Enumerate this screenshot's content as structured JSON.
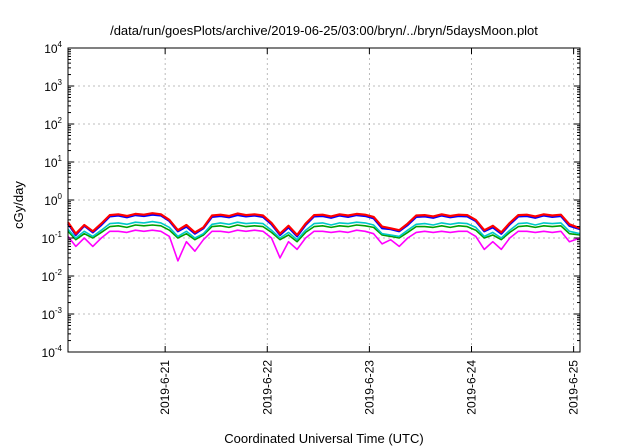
{
  "chart_data": {
    "type": "line",
    "title": "/data/run/goesPlots/archive/2019-06-25/03:00/bryn/../bryn/5daysMoon.plot",
    "xlabel": "Coordinated Universal Time (UTC)",
    "ylabel": "cGy/day",
    "yscale": "log",
    "ylim": [
      0.0001,
      10000
    ],
    "yticks": [
      {
        "base": "10",
        "exp": "-4"
      },
      {
        "base": "10",
        "exp": "-3"
      },
      {
        "base": "10",
        "exp": "-2"
      },
      {
        "base": "10",
        "exp": "-1"
      },
      {
        "base": "10",
        "exp": "0"
      },
      {
        "base": "10",
        "exp": "1"
      },
      {
        "base": "10",
        "exp": "2"
      },
      {
        "base": "10",
        "exp": "3"
      },
      {
        "base": "10",
        "exp": "4"
      }
    ],
    "x_unit": "day (UTC)",
    "xlim": [
      "2019-06-20T01:10",
      "2019-06-25T01:30"
    ],
    "xticks": [
      "2019-6-21",
      "2019-6-22",
      "2019-6-23",
      "2019-6-24",
      "2019-6-25"
    ],
    "grid": true,
    "legend": "none",
    "series": [
      {
        "color": "#ff0000",
        "x": [
          "2019-06-20T01:10",
          "2019-06-20T03:00",
          "2019-06-20T05:00",
          "2019-06-20T07:00",
          "2019-06-20T09:00",
          "2019-06-20T11:00",
          "2019-06-20T13:00",
          "2019-06-20T15:00",
          "2019-06-20T17:00",
          "2019-06-20T19:00",
          "2019-06-20T21:00",
          "2019-06-20T23:00",
          "2019-06-21T01:00",
          "2019-06-21T03:00",
          "2019-06-21T05:00",
          "2019-06-21T07:00",
          "2019-06-21T09:00",
          "2019-06-21T11:00",
          "2019-06-21T13:00",
          "2019-06-21T15:00",
          "2019-06-21T17:00",
          "2019-06-21T19:00",
          "2019-06-21T21:00",
          "2019-06-21T23:00",
          "2019-06-22T01:00",
          "2019-06-22T03:00",
          "2019-06-22T05:00",
          "2019-06-22T07:00",
          "2019-06-22T09:00",
          "2019-06-22T11:00",
          "2019-06-22T13:00",
          "2019-06-22T15:00",
          "2019-06-22T17:00",
          "2019-06-22T19:00",
          "2019-06-22T21:00",
          "2019-06-22T23:00",
          "2019-06-23T01:00",
          "2019-06-23T03:00",
          "2019-06-23T05:00",
          "2019-06-23T07:00",
          "2019-06-23T09:00",
          "2019-06-23T11:00",
          "2019-06-23T13:00",
          "2019-06-23T15:00",
          "2019-06-23T17:00",
          "2019-06-23T19:00",
          "2019-06-23T21:00",
          "2019-06-23T23:00",
          "2019-06-24T01:00",
          "2019-06-24T03:00",
          "2019-06-24T05:00",
          "2019-06-24T07:00",
          "2019-06-24T09:00",
          "2019-06-24T11:00",
          "2019-06-24T13:00",
          "2019-06-24T15:00",
          "2019-06-24T17:00",
          "2019-06-24T19:00",
          "2019-06-24T21:00",
          "2019-06-24T23:00",
          "2019-06-25T01:30"
        ],
        "y": [
          0.26,
          0.13,
          0.22,
          0.15,
          0.24,
          0.4,
          0.42,
          0.38,
          0.43,
          0.41,
          0.45,
          0.42,
          0.3,
          0.16,
          0.22,
          0.14,
          0.19,
          0.39,
          0.41,
          0.38,
          0.44,
          0.4,
          0.42,
          0.39,
          0.25,
          0.13,
          0.21,
          0.12,
          0.24,
          0.4,
          0.41,
          0.37,
          0.42,
          0.39,
          0.43,
          0.41,
          0.36,
          0.2,
          0.18,
          0.16,
          0.24,
          0.39,
          0.4,
          0.37,
          0.42,
          0.38,
          0.41,
          0.4,
          0.3,
          0.16,
          0.21,
          0.14,
          0.25,
          0.4,
          0.41,
          0.37,
          0.42,
          0.39,
          0.41,
          0.23,
          0.18
        ]
      },
      {
        "color": "#0000ff",
        "x": [
          "2019-06-20T01:10",
          "2019-06-20T03:00",
          "2019-06-20T05:00",
          "2019-06-20T07:00",
          "2019-06-20T09:00",
          "2019-06-20T11:00",
          "2019-06-20T13:00",
          "2019-06-20T15:00",
          "2019-06-20T17:00",
          "2019-06-20T19:00",
          "2019-06-20T21:00",
          "2019-06-20T23:00",
          "2019-06-21T01:00",
          "2019-06-21T03:00",
          "2019-06-21T05:00",
          "2019-06-21T07:00",
          "2019-06-21T09:00",
          "2019-06-21T11:00",
          "2019-06-21T13:00",
          "2019-06-21T15:00",
          "2019-06-21T17:00",
          "2019-06-21T19:00",
          "2019-06-21T21:00",
          "2019-06-21T23:00",
          "2019-06-22T01:00",
          "2019-06-22T03:00",
          "2019-06-22T05:00",
          "2019-06-22T07:00",
          "2019-06-22T09:00",
          "2019-06-22T11:00",
          "2019-06-22T13:00",
          "2019-06-22T15:00",
          "2019-06-22T17:00",
          "2019-06-22T19:00",
          "2019-06-22T21:00",
          "2019-06-22T23:00",
          "2019-06-23T01:00",
          "2019-06-23T03:00",
          "2019-06-23T05:00",
          "2019-06-23T07:00",
          "2019-06-23T09:00",
          "2019-06-23T11:00",
          "2019-06-23T13:00",
          "2019-06-23T15:00",
          "2019-06-23T17:00",
          "2019-06-23T19:00",
          "2019-06-23T21:00",
          "2019-06-23T23:00",
          "2019-06-24T01:00",
          "2019-06-24T03:00",
          "2019-06-24T05:00",
          "2019-06-24T07:00",
          "2019-06-24T09:00",
          "2019-06-24T11:00",
          "2019-06-24T13:00",
          "2019-06-24T15:00",
          "2019-06-24T17:00",
          "2019-06-24T19:00",
          "2019-06-24T21:00",
          "2019-06-24T23:00",
          "2019-06-25T01:30"
        ],
        "y": [
          0.24,
          0.12,
          0.21,
          0.14,
          0.22,
          0.37,
          0.39,
          0.35,
          0.4,
          0.38,
          0.41,
          0.39,
          0.28,
          0.15,
          0.2,
          0.13,
          0.18,
          0.36,
          0.38,
          0.35,
          0.4,
          0.37,
          0.39,
          0.36,
          0.23,
          0.12,
          0.19,
          0.11,
          0.22,
          0.37,
          0.38,
          0.34,
          0.39,
          0.36,
          0.4,
          0.38,
          0.33,
          0.18,
          0.17,
          0.15,
          0.22,
          0.36,
          0.37,
          0.34,
          0.39,
          0.35,
          0.38,
          0.37,
          0.28,
          0.15,
          0.19,
          0.13,
          0.23,
          0.37,
          0.38,
          0.34,
          0.39,
          0.36,
          0.38,
          0.21,
          0.17
        ]
      },
      {
        "color": "#00c8c8",
        "x": [
          "2019-06-20T01:10",
          "2019-06-20T03:00",
          "2019-06-20T05:00",
          "2019-06-20T07:00",
          "2019-06-20T09:00",
          "2019-06-20T11:00",
          "2019-06-20T13:00",
          "2019-06-20T15:00",
          "2019-06-20T17:00",
          "2019-06-20T19:00",
          "2019-06-20T21:00",
          "2019-06-20T23:00",
          "2019-06-21T01:00",
          "2019-06-21T03:00",
          "2019-06-21T05:00",
          "2019-06-21T07:00",
          "2019-06-21T09:00",
          "2019-06-21T11:00",
          "2019-06-21T13:00",
          "2019-06-21T15:00",
          "2019-06-21T17:00",
          "2019-06-21T19:00",
          "2019-06-21T21:00",
          "2019-06-21T23:00",
          "2019-06-22T01:00",
          "2019-06-22T03:00",
          "2019-06-22T05:00",
          "2019-06-22T07:00",
          "2019-06-22T09:00",
          "2019-06-22T11:00",
          "2019-06-22T13:00",
          "2019-06-22T15:00",
          "2019-06-22T17:00",
          "2019-06-22T19:00",
          "2019-06-22T21:00",
          "2019-06-22T23:00",
          "2019-06-23T01:00",
          "2019-06-23T03:00",
          "2019-06-23T05:00",
          "2019-06-23T07:00",
          "2019-06-23T09:00",
          "2019-06-23T11:00",
          "2019-06-23T13:00",
          "2019-06-23T15:00",
          "2019-06-23T17:00",
          "2019-06-23T19:00",
          "2019-06-23T21:00",
          "2019-06-23T23:00",
          "2019-06-24T01:00",
          "2019-06-24T03:00",
          "2019-06-24T05:00",
          "2019-06-24T07:00",
          "2019-06-24T09:00",
          "2019-06-24T11:00",
          "2019-06-24T13:00",
          "2019-06-24T15:00",
          "2019-06-24T17:00",
          "2019-06-24T19:00",
          "2019-06-24T21:00",
          "2019-06-24T23:00",
          "2019-06-25T01:30"
        ],
        "y": [
          0.17,
          0.1,
          0.15,
          0.11,
          0.16,
          0.24,
          0.25,
          0.23,
          0.26,
          0.25,
          0.27,
          0.25,
          0.19,
          0.11,
          0.15,
          0.1,
          0.13,
          0.23,
          0.25,
          0.23,
          0.26,
          0.24,
          0.25,
          0.24,
          0.16,
          0.1,
          0.14,
          0.09,
          0.16,
          0.24,
          0.25,
          0.22,
          0.25,
          0.24,
          0.26,
          0.25,
          0.22,
          0.13,
          0.12,
          0.11,
          0.16,
          0.23,
          0.24,
          0.22,
          0.25,
          0.23,
          0.25,
          0.24,
          0.19,
          0.11,
          0.14,
          0.1,
          0.16,
          0.24,
          0.25,
          0.22,
          0.25,
          0.24,
          0.25,
          0.15,
          0.13
        ]
      },
      {
        "color": "#00a000",
        "x": [
          "2019-06-20T01:10",
          "2019-06-20T03:00",
          "2019-06-20T05:00",
          "2019-06-20T07:00",
          "2019-06-20T09:00",
          "2019-06-20T11:00",
          "2019-06-20T13:00",
          "2019-06-20T15:00",
          "2019-06-20T17:00",
          "2019-06-20T19:00",
          "2019-06-20T21:00",
          "2019-06-20T23:00",
          "2019-06-21T01:00",
          "2019-06-21T03:00",
          "2019-06-21T05:00",
          "2019-06-21T07:00",
          "2019-06-21T09:00",
          "2019-06-21T11:00",
          "2019-06-21T13:00",
          "2019-06-21T15:00",
          "2019-06-21T17:00",
          "2019-06-21T19:00",
          "2019-06-21T21:00",
          "2019-06-21T23:00",
          "2019-06-22T01:00",
          "2019-06-22T03:00",
          "2019-06-22T05:00",
          "2019-06-22T07:00",
          "2019-06-22T09:00",
          "2019-06-22T11:00",
          "2019-06-22T13:00",
          "2019-06-22T15:00",
          "2019-06-22T17:00",
          "2019-06-22T19:00",
          "2019-06-22T21:00",
          "2019-06-22T23:00",
          "2019-06-23T01:00",
          "2019-06-23T03:00",
          "2019-06-23T05:00",
          "2019-06-23T07:00",
          "2019-06-23T09:00",
          "2019-06-23T11:00",
          "2019-06-23T13:00",
          "2019-06-23T15:00",
          "2019-06-23T17:00",
          "2019-06-23T19:00",
          "2019-06-23T21:00",
          "2019-06-23T23:00",
          "2019-06-24T01:00",
          "2019-06-24T03:00",
          "2019-06-24T05:00",
          "2019-06-24T07:00",
          "2019-06-24T09:00",
          "2019-06-24T11:00",
          "2019-06-24T13:00",
          "2019-06-24T15:00",
          "2019-06-24T17:00",
          "2019-06-24T19:00",
          "2019-06-24T21:00",
          "2019-06-24T23:00",
          "2019-06-25T01:30"
        ],
        "y": [
          0.15,
          0.09,
          0.13,
          0.1,
          0.14,
          0.2,
          0.21,
          0.19,
          0.22,
          0.21,
          0.22,
          0.21,
          0.16,
          0.1,
          0.13,
          0.09,
          0.12,
          0.2,
          0.21,
          0.19,
          0.22,
          0.2,
          0.21,
          0.2,
          0.14,
          0.09,
          0.12,
          0.08,
          0.14,
          0.2,
          0.21,
          0.19,
          0.21,
          0.2,
          0.22,
          0.21,
          0.19,
          0.12,
          0.11,
          0.1,
          0.14,
          0.2,
          0.2,
          0.19,
          0.21,
          0.19,
          0.21,
          0.2,
          0.16,
          0.1,
          0.12,
          0.09,
          0.14,
          0.2,
          0.21,
          0.19,
          0.21,
          0.2,
          0.21,
          0.13,
          0.12
        ]
      },
      {
        "color": "#ff00ff",
        "x": [
          "2019-06-20T01:10",
          "2019-06-20T03:00",
          "2019-06-20T05:00",
          "2019-06-20T07:00",
          "2019-06-20T09:00",
          "2019-06-20T11:00",
          "2019-06-20T13:00",
          "2019-06-20T15:00",
          "2019-06-20T17:00",
          "2019-06-20T19:00",
          "2019-06-20T21:00",
          "2019-06-20T23:00",
          "2019-06-21T01:00",
          "2019-06-21T03:00",
          "2019-06-21T05:00",
          "2019-06-21T07:00",
          "2019-06-21T09:00",
          "2019-06-21T11:00",
          "2019-06-21T13:00",
          "2019-06-21T15:00",
          "2019-06-21T17:00",
          "2019-06-21T19:00",
          "2019-06-21T21:00",
          "2019-06-21T23:00",
          "2019-06-22T01:00",
          "2019-06-22T03:00",
          "2019-06-22T05:00",
          "2019-06-22T07:00",
          "2019-06-22T09:00",
          "2019-06-22T11:00",
          "2019-06-22T13:00",
          "2019-06-22T15:00",
          "2019-06-22T17:00",
          "2019-06-22T19:00",
          "2019-06-22T21:00",
          "2019-06-22T23:00",
          "2019-06-23T01:00",
          "2019-06-23T03:00",
          "2019-06-23T05:00",
          "2019-06-23T07:00",
          "2019-06-23T09:00",
          "2019-06-23T11:00",
          "2019-06-23T13:00",
          "2019-06-23T15:00",
          "2019-06-23T17:00",
          "2019-06-23T19:00",
          "2019-06-23T21:00",
          "2019-06-23T23:00",
          "2019-06-24T01:00",
          "2019-06-24T03:00",
          "2019-06-24T05:00",
          "2019-06-24T07:00",
          "2019-06-24T09:00",
          "2019-06-24T11:00",
          "2019-06-24T13:00",
          "2019-06-24T15:00",
          "2019-06-24T17:00",
          "2019-06-24T19:00",
          "2019-06-24T21:00",
          "2019-06-24T23:00",
          "2019-06-25T01:30"
        ],
        "y": [
          0.11,
          0.06,
          0.1,
          0.06,
          0.1,
          0.15,
          0.15,
          0.14,
          0.16,
          0.15,
          0.16,
          0.15,
          0.11,
          0.025,
          0.08,
          0.045,
          0.09,
          0.15,
          0.15,
          0.14,
          0.16,
          0.15,
          0.16,
          0.15,
          0.1,
          0.03,
          0.08,
          0.05,
          0.1,
          0.15,
          0.15,
          0.14,
          0.15,
          0.14,
          0.16,
          0.15,
          0.13,
          0.07,
          0.09,
          0.06,
          0.1,
          0.14,
          0.15,
          0.14,
          0.15,
          0.14,
          0.15,
          0.15,
          0.11,
          0.05,
          0.08,
          0.05,
          0.1,
          0.15,
          0.15,
          0.14,
          0.15,
          0.14,
          0.15,
          0.08,
          0.1
        ]
      }
    ]
  }
}
